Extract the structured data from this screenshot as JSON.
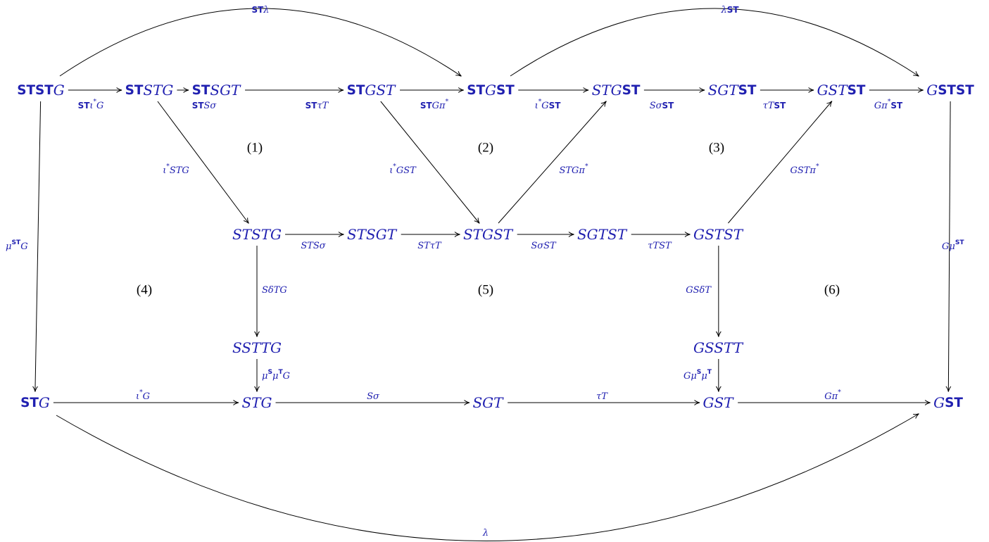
{
  "nodes": [
    {
      "label": [
        {
          "text": "ST",
          "bold": true
        },
        {
          "text": "ST",
          "bold": true
        },
        "G"
      ]
    },
    {
      "label": [
        {
          "text": "ST",
          "bold": true
        },
        "STG"
      ]
    },
    {
      "label": [
        {
          "text": "ST",
          "bold": true
        },
        "SGT"
      ]
    },
    {
      "label": [
        {
          "text": "ST",
          "bold": true
        },
        "GST"
      ]
    },
    {
      "label": [
        {
          "text": "ST",
          "bold": true
        },
        "G",
        {
          "text": "ST",
          "bold": true
        }
      ]
    },
    {
      "label": [
        "STG",
        {
          "text": "ST",
          "bold": true
        }
      ]
    },
    {
      "label": [
        "SGT",
        {
          "text": "ST",
          "bold": true
        }
      ]
    },
    {
      "label": [
        "GST",
        {
          "text": "ST",
          "bold": true
        }
      ]
    },
    {
      "label": [
        "G",
        {
          "text": "ST",
          "bold": true
        },
        {
          "text": "ST",
          "bold": true
        }
      ]
    },
    {
      "label": [
        "STSTG"
      ]
    },
    {
      "label": [
        "STSGT"
      ]
    },
    {
      "label": [
        "STGST"
      ]
    },
    {
      "label": [
        "SGTST"
      ]
    },
    {
      "label": [
        "GSTST"
      ]
    },
    {
      "label": [
        "SSTTG"
      ]
    },
    {
      "label": [
        "GSSTT"
      ]
    },
    {
      "label": [
        {
          "text": "ST",
          "bold": true
        },
        "G"
      ]
    },
    {
      "label": [
        "STG"
      ]
    },
    {
      "label": [
        "SGT"
      ]
    },
    {
      "label": [
        "GST"
      ]
    },
    {
      "label": [
        "G",
        {
          "text": "ST",
          "bold": true
        }
      ]
    }
  ],
  "edges": [
    {
      "from": 0,
      "to": 1,
      "label": [
        {
          "text": "ST",
          "bold": true
        },
        "ι",
        {
          "text": "*",
          "sup": true
        },
        "G"
      ]
    },
    {
      "from": 1,
      "to": 2,
      "label": [
        {
          "text": "ST",
          "bold": true
        },
        "Sσ"
      ]
    },
    {
      "from": 2,
      "to": 3,
      "label": [
        {
          "text": "ST",
          "bold": true
        },
        "τT"
      ]
    },
    {
      "from": 3,
      "to": 4,
      "label": [
        {
          "text": "ST",
          "bold": true
        },
        "Gπ",
        {
          "text": "*",
          "sup": true
        }
      ]
    },
    {
      "from": 4,
      "to": 5,
      "label": [
        "ι",
        {
          "text": "*",
          "sup": true
        },
        "G",
        {
          "text": "ST",
          "bold": true
        }
      ]
    },
    {
      "from": 5,
      "to": 6,
      "label": [
        "Sσ",
        {
          "text": "ST",
          "bold": true
        }
      ]
    },
    {
      "from": 6,
      "to": 7,
      "label": [
        "τT",
        {
          "text": "ST",
          "bold": true
        }
      ]
    },
    {
      "from": 7,
      "to": 8,
      "label": [
        "Gπ",
        {
          "text": "*",
          "sup": true
        },
        {
          "text": "ST",
          "bold": true
        }
      ]
    },
    {
      "from": 0,
      "to": 4,
      "label": [
        {
          "text": "ST",
          "bold": true
        },
        "λ"
      ]
    },
    {
      "from": 4,
      "to": 8,
      "label": [
        "λ",
        {
          "text": "ST",
          "bold": true
        }
      ]
    },
    {
      "from": 1,
      "to": 9,
      "label": [
        "ι",
        {
          "text": "*",
          "sup": true
        },
        "STG"
      ]
    },
    {
      "from": 3,
      "to": 11,
      "label": [
        "ι",
        {
          "text": "*",
          "sup": true
        },
        "GST"
      ]
    },
    {
      "from": 11,
      "to": 5,
      "label": [
        "STGπ",
        {
          "text": "*",
          "sup": true
        }
      ]
    },
    {
      "from": 13,
      "to": 7,
      "label": [
        "GSTπ",
        {
          "text": "*",
          "sup": true
        }
      ]
    },
    {
      "from": 9,
      "to": 10,
      "label": [
        "STSσ"
      ]
    },
    {
      "from": 10,
      "to": 11,
      "label": [
        "STτT"
      ]
    },
    {
      "from": 11,
      "to": 12,
      "label": [
        "SσST"
      ]
    },
    {
      "from": 12,
      "to": 13,
      "label": [
        "τTST"
      ]
    },
    {
      "from": 9,
      "to": 14,
      "label": [
        "SδTG"
      ]
    },
    {
      "from": 14,
      "to": 17,
      "label": [
        "μ",
        {
          "text": "S",
          "bold": true,
          "sup": true
        },
        "μ",
        {
          "text": "T",
          "bold": true,
          "sup": true
        },
        "G"
      ]
    },
    {
      "from": 13,
      "to": 15,
      "label": [
        "GSδT"
      ]
    },
    {
      "from": 15,
      "to": 19,
      "label": [
        "Gμ",
        {
          "text": "S",
          "bold": true,
          "sup": true
        },
        "μ",
        {
          "text": "T",
          "bold": true,
          "sup": true
        }
      ]
    },
    {
      "from": 0,
      "to": 16,
      "label": [
        "μ",
        {
          "text": "ST",
          "bold": true,
          "sup": true
        },
        "G"
      ]
    },
    {
      "from": 8,
      "to": 20,
      "label": [
        "Gμ",
        {
          "text": "ST",
          "bold": true,
          "sup": true
        }
      ]
    },
    {
      "from": 16,
      "to": 17,
      "label": [
        "ι",
        {
          "text": "*",
          "sup": true
        },
        "G"
      ]
    },
    {
      "from": 17,
      "to": 18,
      "label": [
        "Sσ"
      ]
    },
    {
      "from": 18,
      "to": 19,
      "label": [
        "τT"
      ]
    },
    {
      "from": 19,
      "to": 20,
      "label": [
        "Gπ",
        {
          "text": "*",
          "sup": true
        }
      ]
    },
    {
      "from": 16,
      "to": 20,
      "label": [
        "λ"
      ]
    }
  ],
  "regions": [
    "(1)",
    "(2)",
    "(3)",
    "(4)",
    "(5)",
    "(6)"
  ]
}
